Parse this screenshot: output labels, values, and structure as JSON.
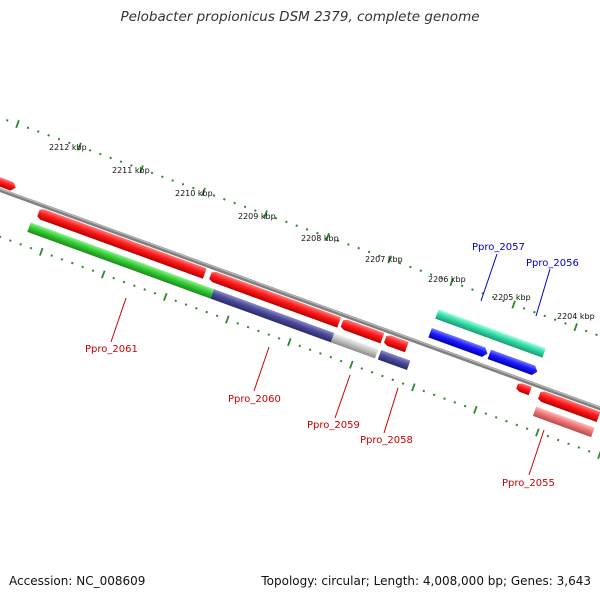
{
  "title": "Pelobacter propionicus DSM 2379, complete genome",
  "accession_label": "Accession: NC_008609",
  "summary_label": "Topology: circular; Length: 4,008,000 bp; Genes: 3,643",
  "kbp_ticks": [
    "2212 kbp",
    "2211 kbp",
    "2210 kbp",
    "2209 kbp",
    "2208 kbp",
    "2207 kbp",
    "2206 kbp",
    "2205 kbp",
    "2204 kbp"
  ],
  "gene_labels": {
    "ppro_2057": "Ppro_2057",
    "ppro_2056": "Ppro_2056",
    "ppro_2061": "Ppro_2061",
    "ppro_2060": "Ppro_2060",
    "ppro_2059": "Ppro_2059",
    "ppro_2058": "Ppro_2058",
    "ppro_2055": "Ppro_2055"
  },
  "colors": {
    "forward_cds": "#ff1a1a",
    "reverse_cds": "#ff1a1a",
    "cog_green": "#33cc33",
    "cog_navy": "#4a4a99",
    "cog_gray": "#bbbbbb",
    "cog_blue": "#1a1aff",
    "cog_teal": "#33ddaa",
    "cog_pink": "#ee7777",
    "backbone": "#808080",
    "ticks": "#2a8a2a",
    "label_red": "#cc0000",
    "label_blue": "#0000cc"
  }
}
